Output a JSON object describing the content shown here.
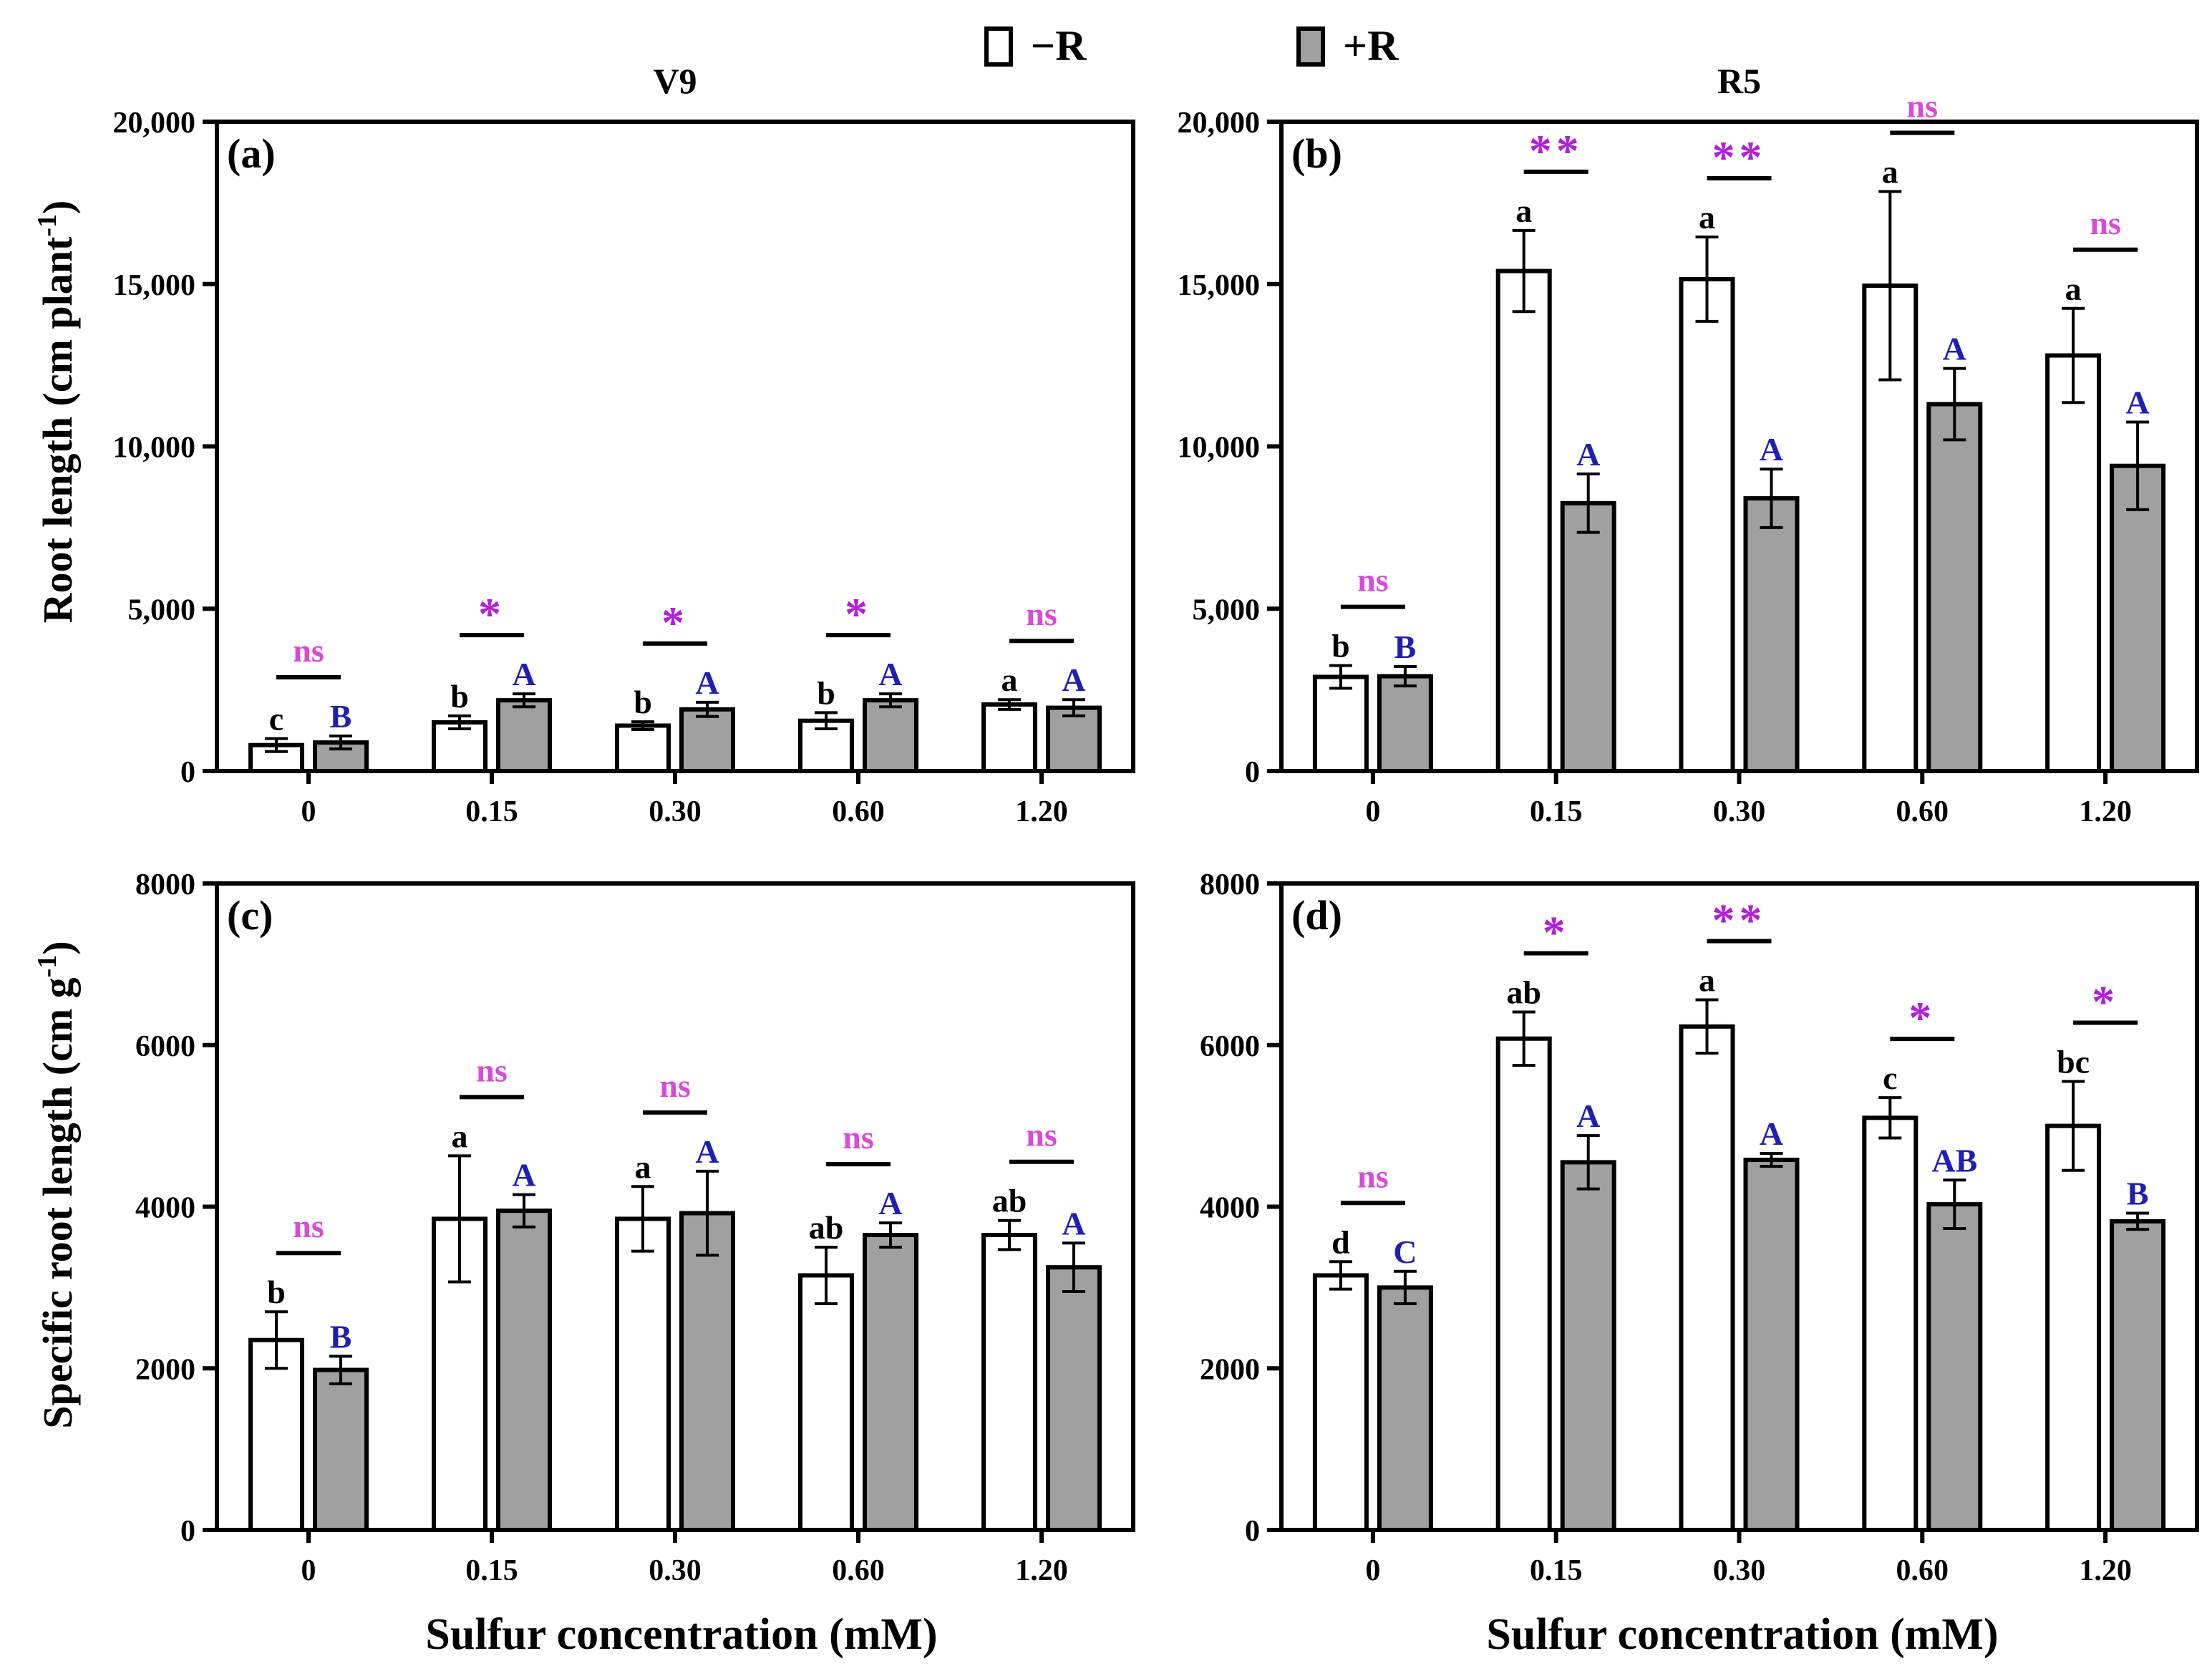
{
  "figure": {
    "legend": [
      {
        "name": "−R",
        "fill": "#ffffff"
      },
      {
        "name": "+R",
        "fill": "#a0a0a0"
      }
    ],
    "xlabel": "Sulfur concentration (mM)",
    "ylabel_top": "Root length (cm plant",
    "ylabel_top_sup": "-1",
    "ylabel_top_close": ")",
    "ylabel_bottom": "Specific root length (cm g",
    "ylabel_bottom_sup": "-1",
    "ylabel_bottom_close": ")",
    "colors": {
      "letter_minus": "#000000",
      "letter_plus": "#1f1fb4",
      "significance": "#b11fd8",
      "ns": "#d94ad9",
      "bar_plus": "#a0a0a0",
      "bar_minus": "#ffffff"
    }
  },
  "chart_data": [
    {
      "type": "bar",
      "panel": "(a)",
      "title": "V9",
      "categories": [
        "0",
        "0.15",
        "0.30",
        "0.60",
        "1.20"
      ],
      "ylim": [
        0,
        20000
      ],
      "yticks": [
        0,
        5000,
        10000,
        15000,
        20000
      ],
      "ytick_labels": [
        "0",
        "5,000",
        "10,000",
        "15,000",
        "20,000"
      ],
      "series": [
        {
          "name": "−R",
          "values": [
            800,
            1500,
            1400,
            1550,
            2050
          ],
          "errors": [
            200,
            200,
            120,
            250,
            150
          ],
          "letters": [
            "c",
            "b",
            "b",
            "b",
            "a"
          ]
        },
        {
          "name": "+R",
          "values": [
            880,
            2180,
            1900,
            2180,
            1950
          ],
          "errors": [
            200,
            200,
            220,
            200,
            250
          ],
          "letters": [
            "B",
            "A",
            "A",
            "A",
            "A"
          ]
        }
      ],
      "significance": [
        "ns",
        "*",
        "*",
        "*",
        "ns"
      ]
    },
    {
      "type": "bar",
      "panel": "(b)",
      "title": "R5",
      "categories": [
        "0",
        "0.15",
        "0.30",
        "0.60",
        "1.20"
      ],
      "ylim": [
        0,
        20000
      ],
      "yticks": [
        0,
        5000,
        10000,
        15000,
        20000
      ],
      "ytick_labels": [
        "0",
        "5,000",
        "10,000",
        "15,000",
        "20,000"
      ],
      "series": [
        {
          "name": "−R",
          "values": [
            2900,
            15400,
            15150,
            14950,
            12800
          ],
          "errors": [
            350,
            1250,
            1300,
            2900,
            1450
          ],
          "letters": [
            "b",
            "a",
            "a",
            "a",
            "a"
          ]
        },
        {
          "name": "+R",
          "values": [
            2920,
            8250,
            8400,
            11300,
            9400
          ],
          "errors": [
            300,
            900,
            900,
            1100,
            1350
          ],
          "letters": [
            "B",
            "A",
            "A",
            "A",
            "A"
          ]
        }
      ],
      "significance": [
        "ns",
        "**",
        "**",
        "ns",
        "ns"
      ]
    },
    {
      "type": "bar",
      "panel": "(c)",
      "title": "",
      "categories": [
        "0",
        "0.15",
        "0.30",
        "0.60",
        "1.20"
      ],
      "ylim": [
        0,
        8000
      ],
      "yticks": [
        0,
        2000,
        4000,
        6000,
        8000
      ],
      "ytick_labels": [
        "0",
        "2000",
        "4000",
        "6000",
        "8000"
      ],
      "series": [
        {
          "name": "−R",
          "values": [
            2350,
            3850,
            3850,
            3150,
            3650
          ],
          "errors": [
            350,
            780,
            400,
            350,
            180
          ],
          "letters": [
            "b",
            "a",
            "a",
            "ab",
            "ab"
          ]
        },
        {
          "name": "+R",
          "values": [
            1980,
            3950,
            3920,
            3650,
            3250
          ],
          "errors": [
            170,
            200,
            520,
            150,
            300
          ],
          "letters": [
            "B",
            "A",
            "A",
            "A",
            "A"
          ]
        }
      ],
      "significance": [
        "ns",
        "ns",
        "ns",
        "ns",
        "ns"
      ]
    },
    {
      "type": "bar",
      "panel": "(d)",
      "title": "",
      "categories": [
        "0",
        "0.15",
        "0.30",
        "0.60",
        "1.20"
      ],
      "ylim": [
        0,
        8000
      ],
      "yticks": [
        0,
        2000,
        4000,
        6000,
        8000
      ],
      "ytick_labels": [
        "0",
        "2000",
        "4000",
        "6000",
        "8000"
      ],
      "series": [
        {
          "name": "−R",
          "values": [
            3150,
            6080,
            6230,
            5100,
            5000
          ],
          "errors": [
            170,
            330,
            330,
            250,
            550
          ],
          "letters": [
            "d",
            "ab",
            "a",
            "c",
            "bc"
          ]
        },
        {
          "name": "+R",
          "values": [
            3000,
            4550,
            4580,
            4030,
            3820
          ],
          "errors": [
            200,
            330,
            80,
            300,
            100
          ],
          "letters": [
            "C",
            "A",
            "A",
            "AB",
            "B"
          ]
        }
      ],
      "significance": [
        "ns",
        "*",
        "**",
        "*",
        "*"
      ]
    }
  ]
}
